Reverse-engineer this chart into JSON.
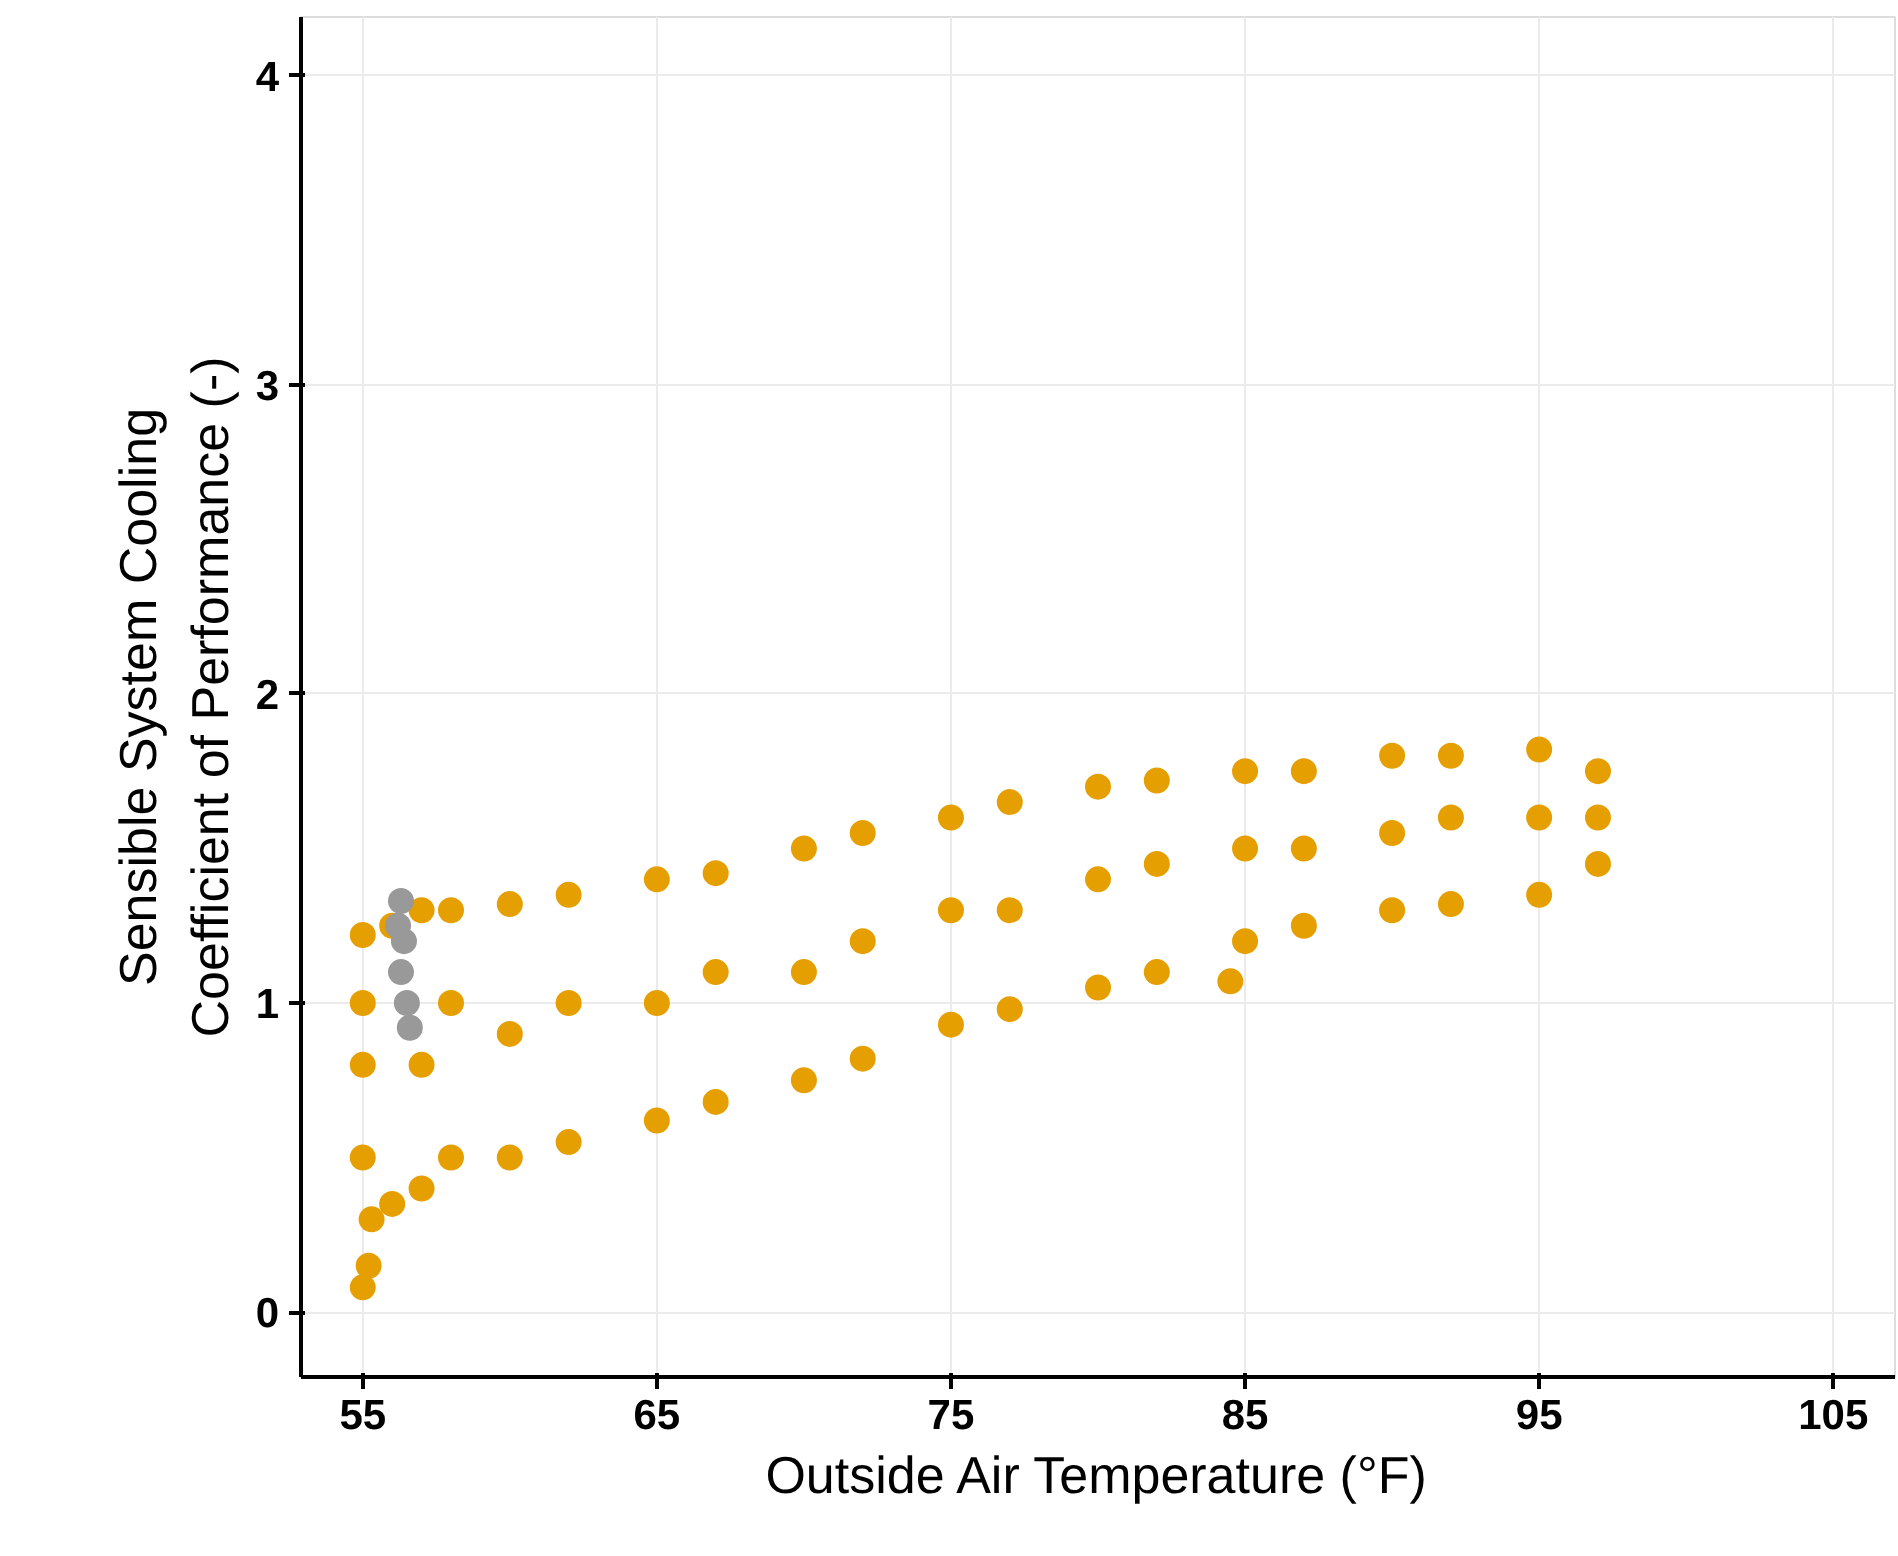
{
  "chart_data": {
    "type": "scatter",
    "xlabel": "Outside Air Temperature (°F)",
    "ylabel": "Sensible System Cooling\nCoefficient of Performance (-)",
    "xlim": [
      52.9,
      107.1
    ],
    "ylim": [
      -0.21,
      4.19
    ],
    "xticks": [
      55,
      65,
      75,
      85,
      95,
      105
    ],
    "yticks": [
      0,
      1,
      2,
      3,
      4
    ],
    "grid": true,
    "marker": "circle",
    "series": [
      {
        "color": "#e69f00",
        "x": [
          55,
          55.2,
          55.3,
          55,
          55,
          55,
          55,
          56,
          56,
          57,
          57,
          57,
          58,
          58,
          58,
          60,
          60,
          60,
          62,
          62,
          62,
          65,
          65,
          65,
          67,
          67,
          67,
          70,
          70,
          70,
          72,
          72,
          72,
          75,
          75,
          75,
          77,
          77,
          77,
          80,
          80,
          80,
          82,
          82,
          82,
          84.5,
          85,
          85,
          85,
          87,
          87,
          87,
          90,
          90,
          90,
          92,
          92,
          92,
          95,
          95,
          95,
          97,
          97,
          97
        ],
        "values": [
          0.08,
          0.15,
          0.3,
          0.5,
          0.8,
          1.0,
          1.22,
          0.35,
          1.25,
          0.4,
          0.8,
          1.3,
          0.5,
          1.0,
          1.3,
          0.5,
          0.9,
          1.32,
          0.55,
          1.0,
          1.35,
          0.62,
          1.0,
          1.4,
          0.68,
          1.1,
          1.42,
          0.75,
          1.1,
          1.5,
          0.82,
          1.2,
          1.55,
          0.93,
          1.3,
          1.6,
          0.98,
          1.3,
          1.65,
          1.05,
          1.4,
          1.7,
          1.1,
          1.45,
          1.72,
          1.07,
          1.2,
          1.5,
          1.75,
          1.25,
          1.5,
          1.75,
          1.3,
          1.55,
          1.8,
          1.32,
          1.6,
          1.8,
          1.35,
          1.6,
          1.82,
          1.45,
          1.6,
          1.75
        ]
      },
      {
        "color": "#999999",
        "x": [
          56.3,
          56.2,
          56.4,
          56.3,
          56.5,
          56.6
        ],
        "values": [
          1.33,
          1.25,
          1.2,
          1.1,
          1.0,
          0.92
        ]
      }
    ]
  }
}
